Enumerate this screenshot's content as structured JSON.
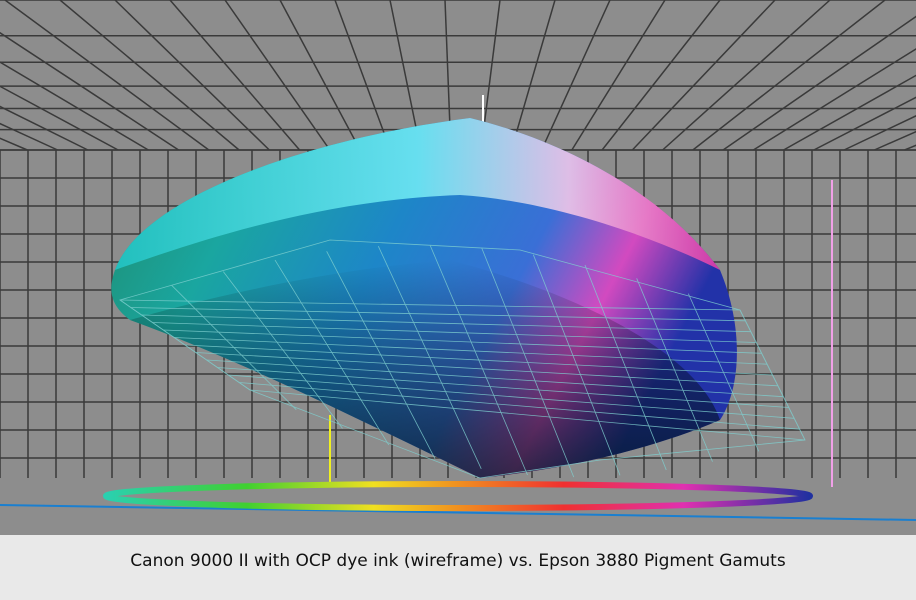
{
  "caption": "Canon 9000 II with OCP dye ink (wireframe) vs. Epson 3880 Pigment Gamuts"
}
